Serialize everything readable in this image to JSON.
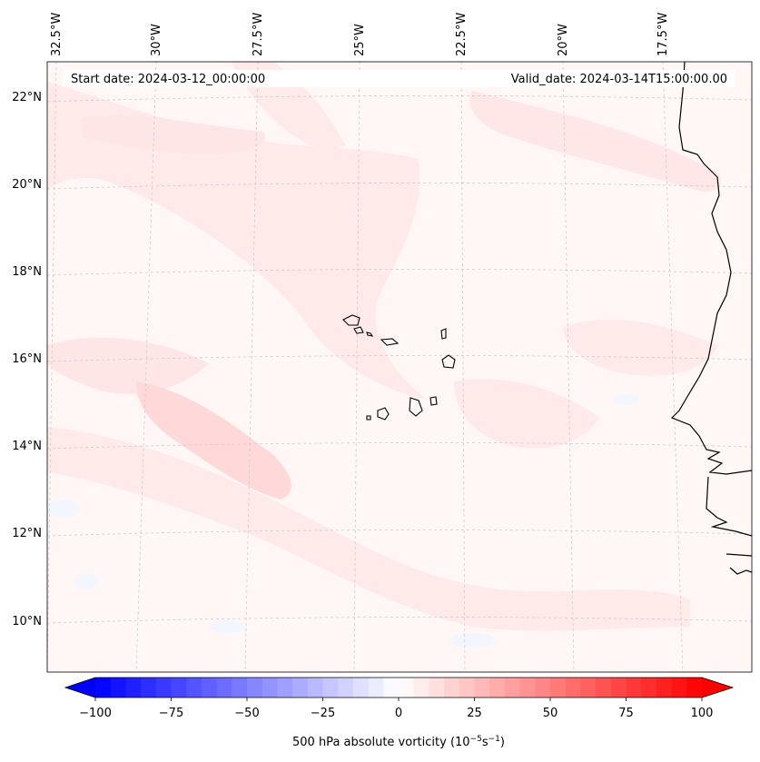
{
  "map": {
    "start_date": "Start date: 2024-03-12_00:00:00",
    "valid_date": "Valid_date: 2024-03-14T15:00:00.00",
    "lon_labels": [
      "32.5°W",
      "30°W",
      "27.5°W",
      "25°W",
      "22.5°W",
      "20°W",
      "17.5°W"
    ],
    "lat_labels": [
      "22°N",
      "20°N",
      "18°N",
      "16°N",
      "14°N",
      "12°N",
      "10°N"
    ],
    "colors": {
      "negative_max": "#0000ff",
      "positive_max": "#ff0000",
      "background_field": "#fff6f6",
      "light_pink": "#ffe6e6",
      "pale_blue": "#f5f7ff",
      "coastline": "#000000",
      "grid": "#c8c8c8"
    }
  },
  "colorbar": {
    "ticks": [
      "−100",
      "−75",
      "−50",
      "−25",
      "0",
      "25",
      "50",
      "75",
      "100"
    ],
    "label": "500 hPa absolute vorticity (10",
    "label_exp1": "−5",
    "label_mid": "s",
    "label_exp2": "−1",
    "label_end": ")"
  }
}
